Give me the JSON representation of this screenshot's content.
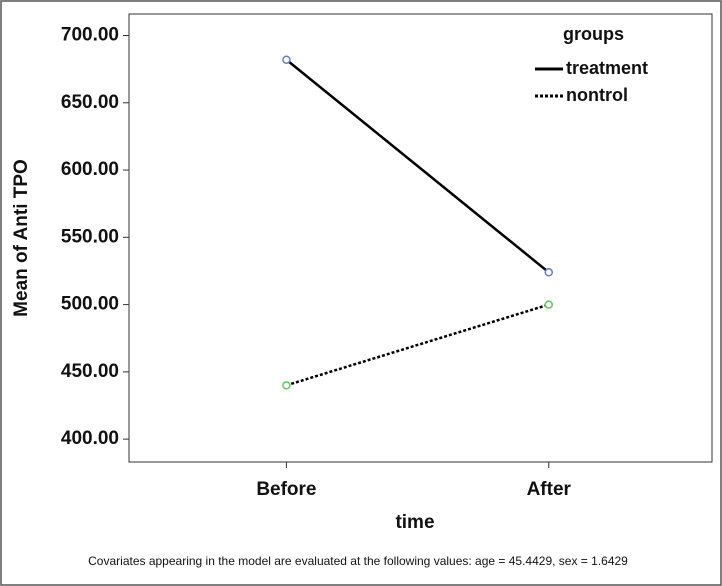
{
  "chart_data": {
    "type": "line",
    "x_label": "time",
    "y_label": "Mean of Anti TPO",
    "categories": [
      "Before",
      "After"
    ],
    "series": [
      {
        "name": "treatment",
        "color": "#000000",
        "marker_color": "#6a7bbf",
        "dash": "solid",
        "values": [
          682,
          524
        ]
      },
      {
        "name": "nontrol",
        "color": "#000000",
        "marker_color": "#6abf6a",
        "dash": "dotted",
        "values": [
          440,
          500
        ]
      }
    ],
    "ylim": [
      383,
      716
    ],
    "yticks": [
      {
        "value": 400,
        "label": "400.00"
      },
      {
        "value": 450,
        "label": "450.00"
      },
      {
        "value": 500,
        "label": "500.00"
      },
      {
        "value": 550,
        "label": "550.00"
      },
      {
        "value": 600,
        "label": "600.00"
      },
      {
        "value": 650,
        "label": "650.00"
      },
      {
        "value": 700,
        "label": "700.00"
      }
    ],
    "legend_title": "groups",
    "legend_position": "top-right",
    "footnote": "Covariates appearing in the model are evaluated at the following values: age = 45.4429, sex = 1.6429"
  }
}
